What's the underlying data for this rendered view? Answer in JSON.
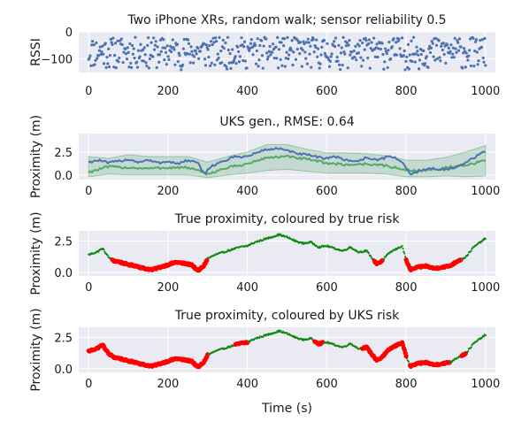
{
  "chart_data": [
    {
      "type": "scatter",
      "title": "Two iPhone XRs, random walk; sensor reliability 0.5",
      "xlabel": "",
      "ylabel": "RSSI",
      "xlim": [
        -25,
        1025
      ],
      "ylim": [
        -150,
        0
      ],
      "xticks": [
        0,
        200,
        400,
        600,
        800,
        1000
      ],
      "yticks": [
        -100,
        0
      ],
      "grid": true,
      "series": [
        {
          "color": "#4c72b0",
          "x_range": [
            0,
            1000
          ],
          "y_range": [
            -140,
            -20
          ],
          "n_points": 520,
          "seed": 11
        }
      ]
    },
    {
      "type": "line",
      "title": "UKS gen., RMSE: 0.64",
      "xlabel": "",
      "ylabel": "Proximity (m)",
      "xlim": [
        -25,
        1025
      ],
      "ylim": [
        -0.5,
        4.5
      ],
      "xticks": [
        0,
        200,
        400,
        600,
        800,
        1000
      ],
      "yticks": [
        0.0,
        2.5
      ],
      "ytick_labels": [
        "0.0",
        "2.5"
      ],
      "grid": true,
      "series": [
        {
          "kind": "band",
          "color": "#55a868",
          "opacity": 0.25,
          "x": [
            0,
            50,
            100,
            150,
            200,
            250,
            300,
            350,
            400,
            450,
            500,
            550,
            600,
            650,
            700,
            750,
            800,
            850,
            900,
            950,
            1000
          ],
          "lower": [
            -0.2,
            0.1,
            0.0,
            0.0,
            0.0,
            0.0,
            -0.3,
            0.0,
            0.2,
            0.5,
            0.6,
            0.4,
            0.2,
            0.2,
            0.2,
            0.1,
            -0.2,
            -0.2,
            -0.1,
            -0.2,
            -0.1
          ],
          "upper": [
            2.0,
            1.8,
            2.2,
            2.0,
            2.0,
            2.0,
            1.4,
            2.0,
            2.5,
            3.3,
            3.3,
            2.8,
            2.4,
            2.4,
            2.3,
            2.1,
            1.6,
            1.6,
            1.9,
            2.5,
            3.2
          ]
        },
        {
          "kind": "line",
          "color": "#55a868",
          "x": [
            0,
            50,
            100,
            150,
            200,
            250,
            300,
            350,
            400,
            450,
            500,
            550,
            600,
            650,
            700,
            750,
            800,
            850,
            900,
            950,
            1000
          ],
          "y": [
            0.3,
            0.9,
            0.8,
            0.7,
            0.8,
            0.8,
            0.1,
            0.8,
            1.2,
            1.9,
            2.0,
            1.7,
            1.3,
            1.1,
            1.2,
            1.0,
            0.5,
            0.5,
            0.8,
            1.0,
            1.6
          ]
        },
        {
          "kind": "line",
          "color": "#4c72b0",
          "x": [
            0,
            25,
            50,
            75,
            100,
            125,
            150,
            175,
            200,
            225,
            250,
            275,
            290,
            310,
            340,
            370,
            400,
            440,
            480,
            500,
            530,
            560,
            590,
            620,
            650,
            680,
            700,
            730,
            760,
            790,
            810,
            830,
            860,
            900,
            930,
            960,
            1000
          ],
          "y": [
            1.4,
            1.6,
            1.3,
            1.5,
            1.7,
            1.4,
            1.6,
            1.3,
            1.5,
            1.2,
            1.6,
            1.3,
            0.1,
            1.0,
            1.5,
            2.0,
            2.0,
            2.7,
            2.9,
            2.6,
            2.3,
            2.1,
            1.8,
            2.0,
            1.6,
            1.5,
            1.9,
            1.6,
            2.1,
            1.4,
            0.1,
            0.4,
            0.7,
            0.6,
            0.8,
            1.6,
            2.6
          ]
        }
      ]
    },
    {
      "type": "scatter",
      "title": "True proximity, coloured by true risk",
      "xlabel": "",
      "ylabel": "Proximity (m)",
      "xlim": [
        -25,
        1025
      ],
      "ylim": [
        -0.3,
        3.3
      ],
      "xticks": [
        0,
        200,
        400,
        600,
        800,
        1000
      ],
      "yticks": [
        0.0,
        2.5
      ],
      "ytick_labels": [
        "0.0",
        "2.5"
      ],
      "grid": true,
      "risk_threshold": 1.0,
      "colors": {
        "high_risk": "#ff0000",
        "low_risk": "#118811"
      },
      "true_proximity": {
        "x": [
          0,
          20,
          35,
          50,
          65,
          80,
          100,
          120,
          140,
          160,
          180,
          200,
          220,
          240,
          260,
          275,
          290,
          300,
          320,
          350,
          380,
          400,
          420,
          440,
          460,
          480,
          500,
          520,
          540,
          560,
          580,
          600,
          620,
          640,
          660,
          680,
          700,
          715,
          725,
          735,
          760,
          790,
          800,
          810,
          830,
          850,
          870,
          890,
          910,
          930,
          950,
          970,
          1000
        ],
        "y": [
          1.4,
          1.6,
          1.9,
          1.2,
          0.9,
          0.8,
          0.6,
          0.5,
          0.3,
          0.2,
          0.4,
          0.6,
          0.8,
          0.7,
          0.6,
          0.1,
          0.5,
          1.1,
          1.4,
          1.7,
          2.0,
          2.1,
          2.4,
          2.6,
          2.8,
          3.0,
          2.8,
          2.5,
          2.3,
          2.4,
          2.0,
          2.1,
          1.9,
          1.7,
          2.0,
          1.6,
          1.7,
          1.1,
          0.7,
          0.8,
          1.6,
          2.1,
          1.0,
          0.2,
          0.4,
          0.5,
          0.3,
          0.4,
          0.5,
          0.9,
          1.2,
          2.0,
          2.7
        ]
      }
    },
    {
      "type": "scatter",
      "title": "True proximity, coloured by UKS risk",
      "xlabel": "Time (s)",
      "ylabel": "Proximity (m)",
      "xlim": [
        -25,
        1025
      ],
      "ylim": [
        -0.3,
        3.3
      ],
      "xticks": [
        0,
        200,
        400,
        600,
        800,
        1000
      ],
      "yticks": [
        0.0,
        2.5
      ],
      "ytick_labels": [
        "0.0",
        "2.5"
      ],
      "grid": true,
      "colors": {
        "high_risk": "#ff0000",
        "low_risk": "#118811"
      },
      "uks_high_risk_intervals": [
        [
          0,
          300
        ],
        [
          370,
          400
        ],
        [
          570,
          590
        ],
        [
          690,
          800
        ],
        [
          810,
          910
        ],
        [
          940,
          950
        ]
      ],
      "true_proximity": {
        "x": [
          0,
          20,
          35,
          50,
          65,
          80,
          100,
          120,
          140,
          160,
          180,
          200,
          220,
          240,
          260,
          275,
          290,
          300,
          320,
          350,
          380,
          400,
          420,
          440,
          460,
          480,
          500,
          520,
          540,
          560,
          580,
          600,
          620,
          640,
          660,
          680,
          700,
          715,
          725,
          735,
          760,
          790,
          800,
          810,
          830,
          850,
          870,
          890,
          910,
          930,
          950,
          970,
          1000
        ],
        "y": [
          1.4,
          1.6,
          1.9,
          1.2,
          0.9,
          0.8,
          0.6,
          0.5,
          0.3,
          0.2,
          0.4,
          0.6,
          0.8,
          0.7,
          0.6,
          0.1,
          0.5,
          1.1,
          1.4,
          1.7,
          2.0,
          2.1,
          2.4,
          2.6,
          2.8,
          3.0,
          2.8,
          2.5,
          2.3,
          2.4,
          2.0,
          2.1,
          1.9,
          1.7,
          2.0,
          1.6,
          1.7,
          1.1,
          0.7,
          0.8,
          1.6,
          2.1,
          1.0,
          0.2,
          0.4,
          0.5,
          0.3,
          0.4,
          0.5,
          0.9,
          1.2,
          2.0,
          2.7
        ]
      }
    }
  ],
  "style": {
    "axes_background": "#eaeaf2",
    "grid_color": "#ffffff",
    "text_color": "#1a1a1a"
  }
}
